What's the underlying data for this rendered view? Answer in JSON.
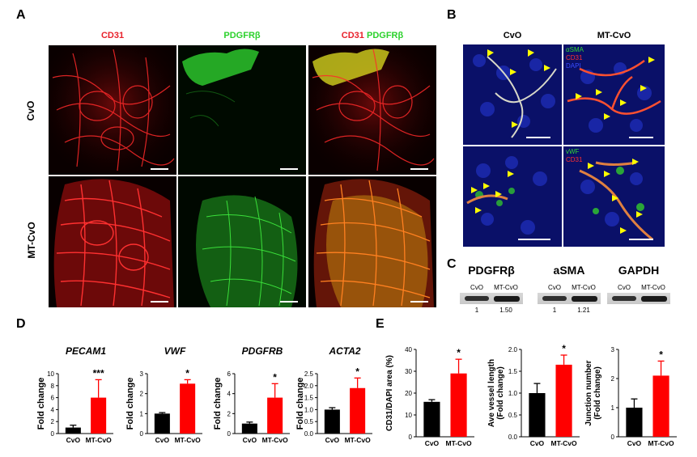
{
  "panelA": {
    "letter": "A",
    "col_titles": [
      {
        "parts": [
          {
            "t": "CD31",
            "c": "#e8202a"
          }
        ]
      },
      {
        "parts": [
          {
            "t": "PDGFRβ",
            "c": "#2bd12b"
          }
        ]
      },
      {
        "parts": [
          {
            "t": "CD31",
            "c": "#e8202a"
          },
          {
            "t": " PDGFRβ",
            "c": "#2bd12b"
          }
        ]
      }
    ],
    "row_labels": [
      "CvO",
      "MT-CvO"
    ]
  },
  "panelB": {
    "letter": "B",
    "col_titles": [
      "CvO",
      "MT-CvO"
    ],
    "top_legend": [
      {
        "t": "αSMA",
        "c": "#33d633"
      },
      {
        "t": "CD31",
        "c": "#ff3030"
      },
      {
        "t": "DAPI",
        "c": "#3a4cff"
      }
    ],
    "bottom_legend": [
      {
        "t": "vWF",
        "c": "#33d633"
      },
      {
        "t": "CD31",
        "c": "#ff3030"
      }
    ]
  },
  "panelC": {
    "letter": "C",
    "blots": [
      {
        "name": "PDGFRβ",
        "lanes": [
          "CvO",
          "MT-CvO"
        ],
        "values": [
          "1",
          "1.50"
        ]
      },
      {
        "name": "aSMA",
        "lanes": [
          "CvO",
          "MT-CvO"
        ],
        "values": [
          "1",
          "1.21"
        ]
      },
      {
        "name": "GAPDH",
        "lanes": [
          "CvO",
          "MT-CvO"
        ],
        "values": [
          "",
          ""
        ]
      }
    ]
  },
  "panelD": {
    "letter": "D",
    "colors": {
      "CvO": "#000000",
      "MT-CvO": "#ff0000"
    },
    "chart_data": [
      {
        "type": "bar",
        "title": "PECAM1",
        "ylabel": "Fold change",
        "categories": [
          "CvO",
          "MT-CvO"
        ],
        "values": [
          1.0,
          6.0
        ],
        "errors": [
          0.4,
          3.0
        ],
        "ylim": [
          0,
          10
        ],
        "yticks": [
          "0",
          "2",
          "4",
          "6",
          "8",
          "10"
        ],
        "significance": "***"
      },
      {
        "type": "bar",
        "title": "VWF",
        "ylabel": "Fold change",
        "categories": [
          "CvO",
          "MT-CvO"
        ],
        "values": [
          1.0,
          2.5
        ],
        "errors": [
          0.05,
          0.2
        ],
        "ylim": [
          0,
          3
        ],
        "yticks": [
          "0",
          "1",
          "2",
          "3"
        ],
        "significance": "*"
      },
      {
        "type": "bar",
        "title": "PDGFRB",
        "ylabel": "Fold change",
        "categories": [
          "CvO",
          "MT-CvO"
        ],
        "values": [
          1.0,
          3.6
        ],
        "errors": [
          0.15,
          1.4
        ],
        "ylim": [
          0,
          6
        ],
        "yticks": [
          "0",
          "2",
          "4",
          "6"
        ],
        "significance": "*"
      },
      {
        "type": "bar",
        "title": "ACTA2",
        "ylabel": "Fold change",
        "categories": [
          "CvO",
          "MT-CvO"
        ],
        "values": [
          1.0,
          1.9
        ],
        "errors": [
          0.08,
          0.42
        ],
        "ylim": [
          0,
          2.5
        ],
        "yticks": [
          "0.0",
          "0.5",
          "1.0",
          "1.5",
          "2.0",
          "2.5"
        ],
        "significance": "*"
      }
    ]
  },
  "panelE": {
    "letter": "E",
    "chart_data": [
      {
        "type": "bar",
        "title": "",
        "ylabel": "CD31/DAPI area (%)",
        "categories": [
          "CvO",
          "MT-CvO"
        ],
        "values": [
          16.0,
          29.0
        ],
        "errors": [
          1.0,
          6.5
        ],
        "ylim": [
          0,
          40
        ],
        "yticks": [
          "0",
          "10",
          "20",
          "30",
          "40"
        ],
        "significance": "*"
      },
      {
        "type": "bar",
        "title": "",
        "ylabel": "Ave vessel length (Fold change)",
        "ylabel_lines": [
          "Ave vessel length",
          "(Fold change)"
        ],
        "categories": [
          "CvO",
          "MT-CvO"
        ],
        "values": [
          1.0,
          1.65
        ],
        "errors": [
          0.22,
          0.22
        ],
        "ylim": [
          0,
          2.0
        ],
        "yticks": [
          "0.0",
          "0.5",
          "1.0",
          "1.5",
          "2.0"
        ],
        "significance": "*"
      },
      {
        "type": "bar",
        "title": "",
        "ylabel": "Junction number (Fold change)",
        "ylabel_lines": [
          "Junction number",
          "(Fold change)"
        ],
        "categories": [
          "CvO",
          "MT-CvO"
        ],
        "values": [
          1.0,
          2.1
        ],
        "errors": [
          0.3,
          0.5
        ],
        "ylim": [
          0,
          3
        ],
        "yticks": [
          "0",
          "1",
          "2",
          "3"
        ],
        "significance": "*"
      }
    ]
  }
}
